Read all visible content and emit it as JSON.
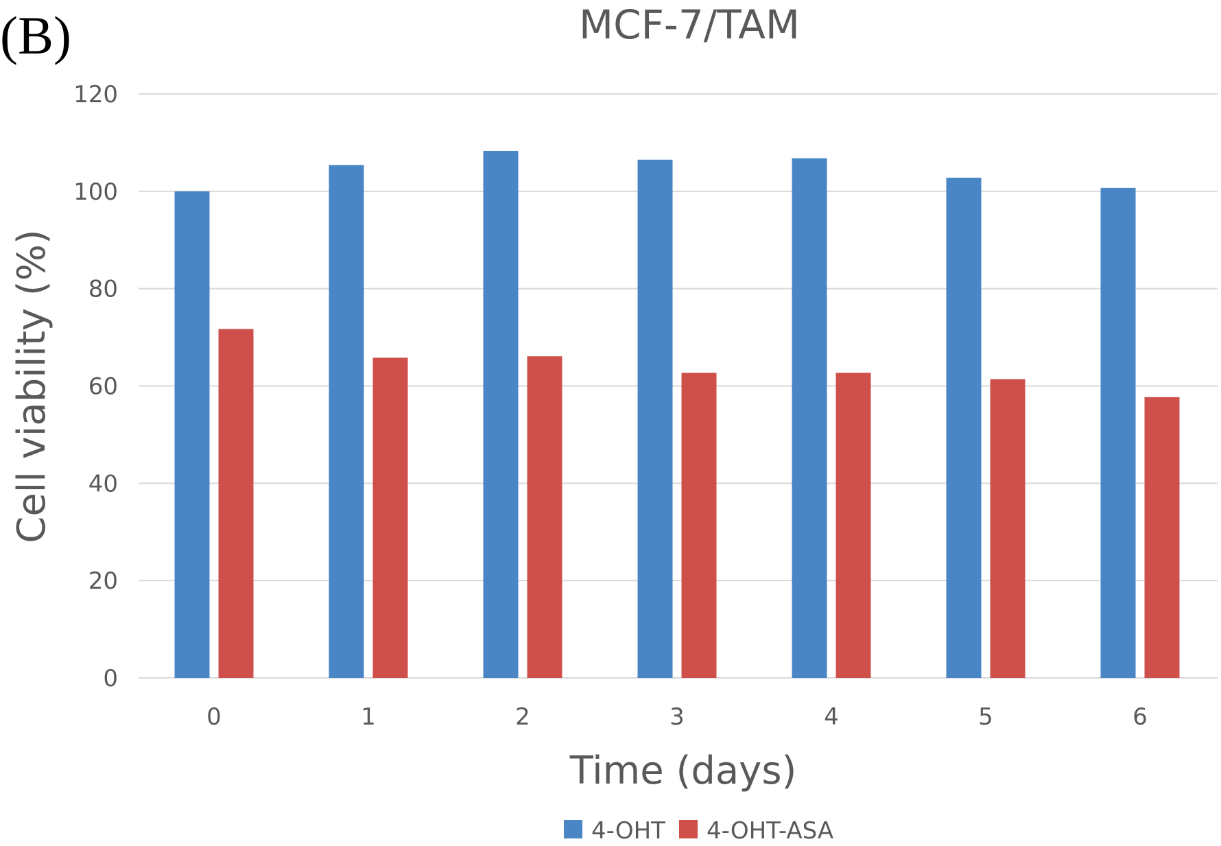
{
  "panel_label": "(B)",
  "chart_data": {
    "type": "bar",
    "title": "MCF-7/TAM",
    "xlabel": "Time (days)",
    "ylabel": "Cell viability (%)",
    "categories": [
      "0",
      "1",
      "2",
      "3",
      "4",
      "5",
      "6"
    ],
    "ylim": [
      0,
      120
    ],
    "yticks": [
      0,
      20,
      40,
      60,
      80,
      100,
      120
    ],
    "grid": true,
    "legend_position": "bottom-center",
    "series": [
      {
        "name": "4-OHT",
        "color": "#4a86c5",
        "values": [
          100,
          105.4,
          108.3,
          106.5,
          106.8,
          102.8,
          100.7
        ]
      },
      {
        "name": "4-OHT-ASA",
        "color": "#cf504b",
        "values": [
          71.7,
          65.8,
          66.1,
          62.7,
          62.7,
          61.4,
          57.7
        ]
      }
    ]
  }
}
